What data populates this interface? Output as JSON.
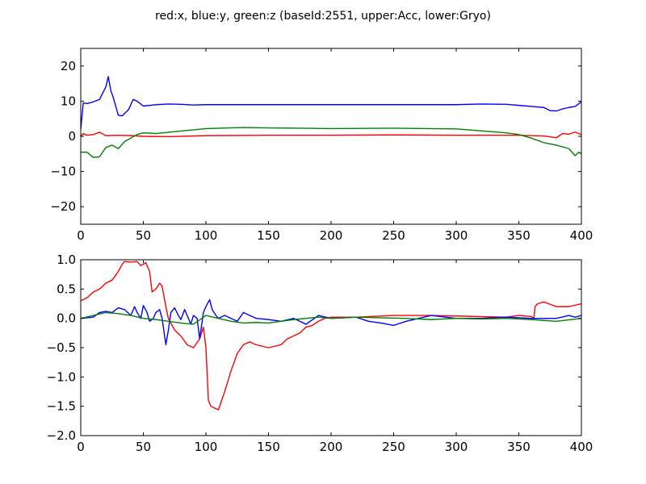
{
  "figure": {
    "title": "red:x, blue:y, green:z (baseId:2551, upper:Acc, lower:Gryo)"
  },
  "chart_data": [
    {
      "type": "line",
      "title": "",
      "xlabel": "",
      "ylabel": "",
      "xlim": [
        0,
        400
      ],
      "ylim": [
        -25,
        25
      ],
      "x_ticks": [
        0,
        50,
        100,
        150,
        200,
        250,
        300,
        350,
        400
      ],
      "y_ticks": [
        -20,
        -10,
        0,
        10,
        20
      ],
      "x_tick_labels": [
        "0",
        "50",
        "100",
        "150",
        "200",
        "250",
        "300",
        "350",
        "400"
      ],
      "y_tick_labels": [
        "−20",
        "−10",
        "0",
        "10",
        "20"
      ],
      "grid": false,
      "series": [
        {
          "color": "#0000ff",
          "x": [
            0,
            2,
            5,
            10,
            15,
            20,
            22,
            24,
            26,
            30,
            33,
            35,
            38,
            42,
            45,
            50,
            60,
            70,
            80,
            90,
            100,
            150,
            200,
            250,
            300,
            320,
            340,
            350,
            360,
            370,
            375,
            380,
            385,
            390,
            395,
            400
          ],
          "y": [
            2,
            9.5,
            9.3,
            9.8,
            10.5,
            14,
            17,
            13,
            11,
            6,
            5.8,
            6.5,
            7.5,
            10.5,
            10,
            8.6,
            9,
            9.2,
            9.1,
            8.9,
            9,
            9,
            9,
            9,
            9,
            9.2,
            9.1,
            8.8,
            8.5,
            8.2,
            7.3,
            7.2,
            7.8,
            8.2,
            8.5,
            9.8
          ]
        },
        {
          "color": "#ff0000",
          "x": [
            0,
            2,
            5,
            10,
            15,
            20,
            30,
            40,
            50,
            70,
            100,
            150,
            200,
            250,
            300,
            350,
            370,
            380,
            385,
            390,
            395,
            400
          ],
          "y": [
            0,
            0.8,
            0.3,
            0.5,
            1.2,
            0.2,
            0.3,
            0.2,
            0,
            -0.1,
            0.2,
            0.3,
            0.3,
            0.4,
            0.3,
            0.3,
            0.1,
            -0.4,
            0.8,
            0.6,
            1.2,
            0.5
          ]
        },
        {
          "color": "#008000",
          "x": [
            0,
            5,
            10,
            15,
            20,
            25,
            30,
            35,
            40,
            45,
            50,
            60,
            80,
            100,
            130,
            150,
            200,
            250,
            300,
            340,
            350,
            360,
            370,
            380,
            390,
            395,
            398,
            400
          ],
          "y": [
            -4.5,
            -4.5,
            -6,
            -5.8,
            -3.2,
            -2.5,
            -3.5,
            -1.5,
            -0.5,
            0.5,
            1,
            0.8,
            1.5,
            2.2,
            2.5,
            2.4,
            2.2,
            2.3,
            2.1,
            1,
            0.5,
            -0.5,
            -1.8,
            -2.5,
            -3.5,
            -5.5,
            -4.5,
            -5
          ]
        }
      ]
    },
    {
      "type": "line",
      "title": "",
      "xlabel": "",
      "ylabel": "",
      "xlim": [
        0,
        400
      ],
      "ylim": [
        -2.0,
        1.0
      ],
      "x_ticks": [
        0,
        50,
        100,
        150,
        200,
        250,
        300,
        350,
        400
      ],
      "y_ticks": [
        -2.0,
        -1.5,
        -1.0,
        -0.5,
        0.0,
        0.5,
        1.0
      ],
      "x_tick_labels": [
        "0",
        "50",
        "100",
        "150",
        "200",
        "250",
        "300",
        "350",
        "400"
      ],
      "y_tick_labels": [
        "−2.0",
        "−1.5",
        "−1.0",
        "−0.5",
        "0.0",
        "0.5",
        "1.0"
      ],
      "grid": false,
      "series": [
        {
          "color": "#ff0000",
          "x": [
            0,
            5,
            10,
            15,
            20,
            25,
            30,
            33,
            35,
            40,
            45,
            48,
            52,
            55,
            57,
            60,
            63,
            65,
            68,
            70,
            75,
            80,
            85,
            90,
            95,
            98,
            100,
            102,
            104,
            107,
            110,
            115,
            120,
            125,
            130,
            135,
            140,
            150,
            160,
            165,
            170,
            175,
            180,
            185,
            190,
            195,
            200,
            220,
            250,
            280,
            300,
            320,
            340,
            350,
            360,
            362,
            363,
            365,
            370,
            380,
            390,
            400
          ],
          "y": [
            0.3,
            0.35,
            0.45,
            0.5,
            0.6,
            0.65,
            0.8,
            0.92,
            0.97,
            0.96,
            0.97,
            0.9,
            0.95,
            0.8,
            0.45,
            0.5,
            0.6,
            0.55,
            0.2,
            0.0,
            -0.2,
            -0.3,
            -0.45,
            -0.5,
            -0.35,
            -0.15,
            -0.5,
            -1.4,
            -1.5,
            -1.53,
            -1.56,
            -1.25,
            -0.9,
            -0.6,
            -0.45,
            -0.4,
            -0.45,
            -0.5,
            -0.45,
            -0.35,
            -0.3,
            -0.25,
            -0.15,
            -0.12,
            -0.05,
            0.0,
            0.02,
            0.02,
            0.05,
            0.05,
            0.04,
            0.03,
            0.02,
            0.05,
            0.03,
            0.0,
            0.2,
            0.25,
            0.28,
            0.2,
            0.2,
            0.25
          ]
        },
        {
          "color": "#0000ff",
          "x": [
            0,
            10,
            15,
            20,
            25,
            30,
            35,
            40,
            43,
            45,
            48,
            50,
            53,
            55,
            58,
            60,
            63,
            65,
            68,
            70,
            72,
            75,
            78,
            80,
            83,
            85,
            88,
            90,
            93,
            95,
            98,
            100,
            103,
            105,
            108,
            110,
            115,
            120,
            125,
            130,
            135,
            140,
            150,
            160,
            170,
            180,
            190,
            200,
            220,
            230,
            240,
            250,
            260,
            280,
            300,
            320,
            340,
            360,
            380,
            390,
            395,
            400
          ],
          "y": [
            0.0,
            0.02,
            0.1,
            0.12,
            0.1,
            0.18,
            0.15,
            0.05,
            0.2,
            0.1,
            0.0,
            0.22,
            0.1,
            -0.05,
            0.0,
            0.1,
            0.15,
            0.0,
            -0.45,
            -0.2,
            0.1,
            0.18,
            0.05,
            -0.02,
            0.15,
            0.05,
            -0.1,
            0.05,
            0.0,
            -0.35,
            0.1,
            0.2,
            0.32,
            0.15,
            0.05,
            0.0,
            0.05,
            0.0,
            -0.05,
            0.1,
            0.05,
            0.0,
            -0.02,
            -0.05,
            0.0,
            -0.1,
            0.05,
            0.0,
            0.02,
            -0.05,
            -0.08,
            -0.12,
            -0.05,
            0.05,
            0.0,
            0.0,
            0.02,
            0.0,
            0.0,
            0.05,
            0.02,
            0.05
          ]
        },
        {
          "color": "#008000",
          "x": [
            0,
            10,
            20,
            30,
            40,
            50,
            60,
            70,
            80,
            90,
            100,
            110,
            120,
            130,
            140,
            150,
            160,
            170,
            180,
            190,
            200,
            220,
            240,
            260,
            280,
            300,
            320,
            340,
            360,
            380,
            400
          ],
          "y": [
            0.0,
            0.05,
            0.1,
            0.08,
            0.05,
            0.0,
            -0.02,
            -0.05,
            -0.08,
            -0.1,
            0.05,
            0.0,
            -0.05,
            -0.08,
            -0.07,
            -0.08,
            -0.05,
            -0.02,
            0.0,
            0.02,
            0.0,
            0.02,
            0.01,
            0.0,
            -0.02,
            0.0,
            -0.01,
            0.0,
            -0.02,
            -0.05,
            0.0
          ]
        }
      ]
    }
  ]
}
